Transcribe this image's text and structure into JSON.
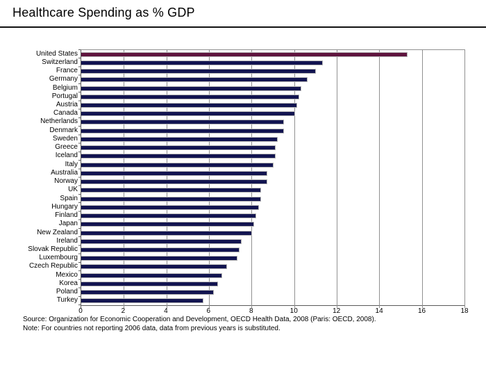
{
  "title": "Healthcare Spending as % GDP",
  "chart_data": {
    "type": "bar",
    "orientation": "horizontal",
    "title": "Healthcare Spending as % GDP",
    "xlabel": "",
    "ylabel": "",
    "xlim": [
      0,
      18
    ],
    "x_ticks": [
      0,
      2,
      4,
      6,
      8,
      10,
      12,
      14,
      16,
      18
    ],
    "grid": true,
    "legend": false,
    "categories": [
      "United States",
      "Switzerland",
      "France",
      "Germany",
      "Belgium",
      "Portugal",
      "Austria",
      "Canada",
      "Netherlands",
      "Denmark",
      "Sweden",
      "Greece",
      "Iceland",
      "Italy",
      "Australia",
      "Norway",
      "UK",
      "Spain",
      "Hungary",
      "Finland",
      "Japan",
      "New Zealand",
      "Ireland",
      "Slovak Republic",
      "Luxembourg",
      "Czech Republic",
      "Mexico",
      "Korea",
      "Poland",
      "Turkey"
    ],
    "values": [
      15.3,
      11.3,
      11.0,
      10.6,
      10.3,
      10.2,
      10.1,
      10.0,
      9.5,
      9.5,
      9.2,
      9.1,
      9.1,
      9.0,
      8.7,
      8.7,
      8.4,
      8.4,
      8.3,
      8.2,
      8.1,
      8.0,
      7.5,
      7.4,
      7.3,
      6.8,
      6.6,
      6.4,
      6.2,
      5.7
    ],
    "highlight_category": "United States",
    "highlight_color": "#5F143E",
    "bar_color": "#121450",
    "gridline_color": "#909090",
    "axis_color": "#5a5a5a"
  },
  "footer": {
    "source": "Source: Organization for Economic Cooperation and Development, OECD Health Data, 2008 (Paris: OECD, 2008).",
    "note": "Note: For countries not reporting 2006 data, data from previous years is substituted."
  }
}
